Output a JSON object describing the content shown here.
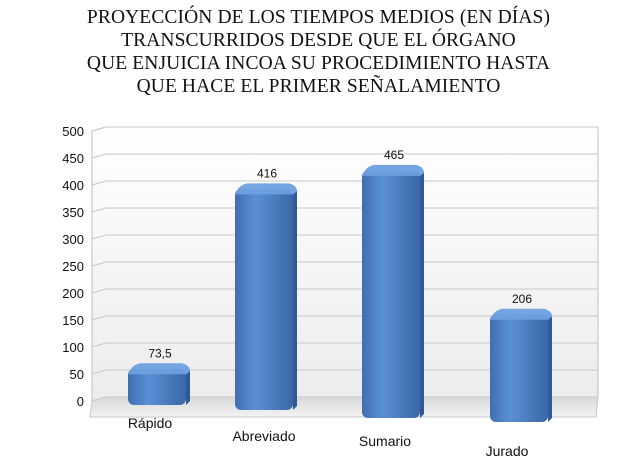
{
  "chart_data": {
    "type": "bar",
    "title": "PROYECCIÓN DE LOS TIEMPOS MEDIOS (EN DÍAS)\nTRANSCURRIDOS DESDE QUE EL ÓRGANO\nQUE ENJUICIA INCOA SU PROCEDIMIENTO HASTA\nQUE HACE EL PRIMER SEÑALAMIENTO",
    "categories": [
      "Rápido",
      "Abreviado",
      "Sumario",
      "Jurado"
    ],
    "values": [
      73.5,
      416,
      465,
      206
    ],
    "data_labels": [
      "73,5",
      "416",
      "465",
      "206"
    ],
    "ylim": [
      0,
      500
    ],
    "yticks": [
      0,
      50,
      100,
      150,
      200,
      250,
      300,
      350,
      400,
      450,
      500
    ],
    "grid": true,
    "legend": "none",
    "bar_color": "#4f81bd"
  }
}
